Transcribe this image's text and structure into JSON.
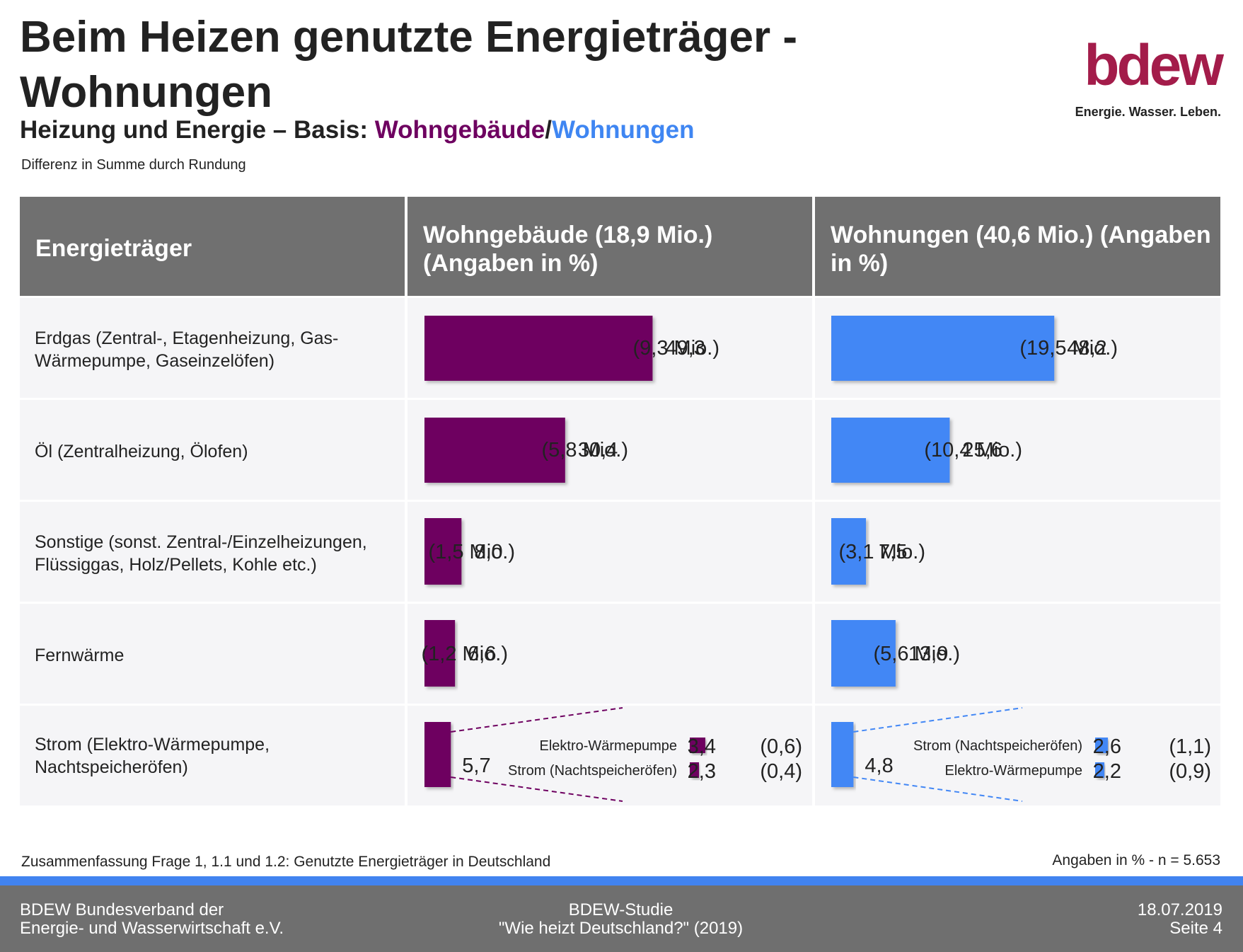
{
  "header": {
    "title": "Beim Heizen genutzte Energieträger - Wohnungen",
    "subtitle_prefix": "Heizung und Energie – Basis: ",
    "subtitle_purple": "Wohngebäude",
    "subtitle_slash": "/",
    "subtitle_blue": "Wohnungen",
    "note": "Differenz in Summe durch Rundung"
  },
  "logo": {
    "text": "bdew",
    "tagline": "Energie. Wasser. Leben.",
    "color": "#a31c4a"
  },
  "chart_data": {
    "type": "bar",
    "columns": {
      "label_header": "Energieträger",
      "series_headers": [
        "Wohngebäude (18,9 Mio.) (Angaben in %)",
        "Wohnungen (40,6 Mio.) (Angaben in %)"
      ]
    },
    "categories": [
      "Erdgas (Zentral-, Etagenheizung, Gas-Wärmepumpe, Gaseinzelöfen)",
      "Öl (Zentralheizung, Ölofen)",
      "Sonstige (sonst. Zentral-/Einzelheizungen, Flüssiggas, Holz/Pellets, Kohle etc.)",
      "Fernwärme",
      "Strom (Elektro-Wärmepumpe, Nachtspeicheröfen)"
    ],
    "series": [
      {
        "name": "Wohngebäude",
        "color": "#6e0060",
        "values": [
          49.3,
          30.4,
          8.0,
          6.6,
          5.7
        ],
        "value_labels": [
          "49,3",
          "30,4",
          "8,0",
          "6,6",
          "5,7"
        ],
        "mio_labels": [
          "(9,3 Mio.)",
          "(5,8 Mio.)",
          "(1,5 Mio.)",
          "(1,2 Mio.)",
          ""
        ],
        "breakdown": [
          {
            "label": "Elektro-Wärmepumpe",
            "value": 3.4,
            "value_label": "3,4",
            "mio_label": "(0,6)"
          },
          {
            "label": "Strom (Nachtspeicheröfen)",
            "value": 2.3,
            "value_label": "2,3",
            "mio_label": "(0,4)"
          }
        ]
      },
      {
        "name": "Wohnungen",
        "color": "#4287f5",
        "values": [
          48.2,
          25.6,
          7.5,
          13.9,
          4.8
        ],
        "value_labels": [
          "48,2",
          "25,6",
          "7,5",
          "13,9",
          "4,8"
        ],
        "mio_labels": [
          "(19,5 Mio.)",
          "(10,4 Mio.)",
          "(3,1 Mio.)",
          "(5,6 Mio.)",
          ""
        ],
        "breakdown": [
          {
            "label": "Strom (Nachtspeicheröfen)",
            "value": 2.6,
            "value_label": "2,6",
            "mio_label": "(1,1)"
          },
          {
            "label": "Elektro-Wärmepumpe",
            "value": 2.2,
            "value_label": "2,2",
            "mio_label": "(0,9)"
          }
        ]
      }
    ],
    "grid": false
  },
  "footer": {
    "source_note": "Zusammenfassung Frage 1, 1.1 und 1.2: Genutzte Energieträger in Deutschland",
    "sample_note": "Angaben in % - n = 5.653",
    "org_line1": "BDEW Bundesverband der",
    "org_line2": "Energie- und Wasserwirtschaft e.V.",
    "study_line1": "BDEW-Studie",
    "study_line2": "\"Wie heizt Deutschland?\" (2019)",
    "date": "18.07.2019",
    "page": "Seite 4"
  }
}
